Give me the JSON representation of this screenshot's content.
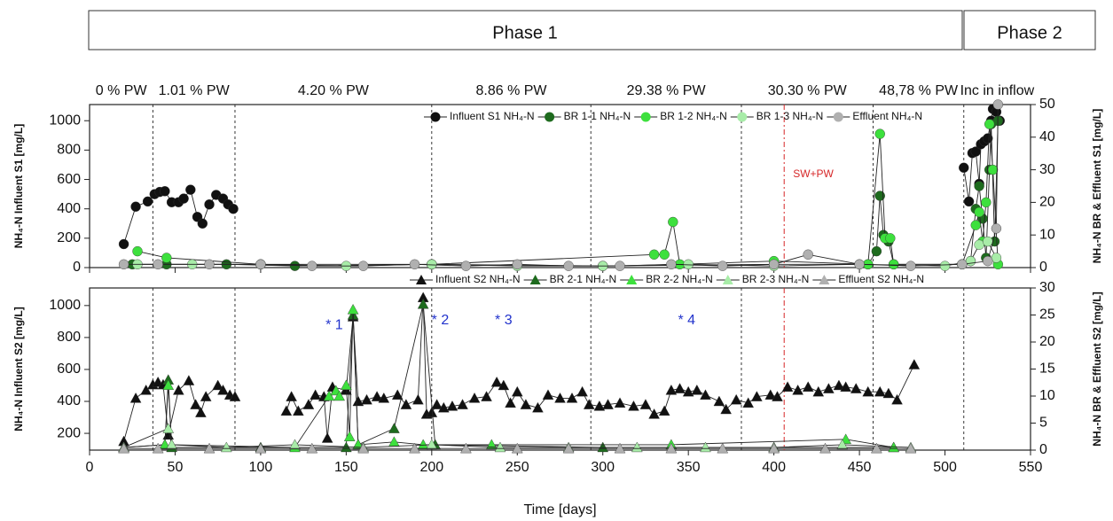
{
  "phases": [
    "Phase 1",
    "Phase 2"
  ],
  "period_labels": [
    "0 % PW",
    "1.01 % PW",
    "4.20 % PW",
    "8.86 % PW",
    "29.38 % PW",
    "30.30 % PW",
    "48,78 % PW",
    "Inc in inflow"
  ],
  "dividers": [
    37,
    85,
    200,
    293,
    381,
    458,
    511
  ],
  "red_divider": {
    "x": 406,
    "label": "SW+PW",
    "color": "#d62728"
  },
  "chart_data": [
    {
      "type": "line",
      "ylabel": "NH₄-N Influent S1 [mg/L]",
      "y2label": "NH₄-N BR & Effluent S1 [mg/L]",
      "xlim": [
        0,
        550
      ],
      "ylim": [
        0,
        1110
      ],
      "yticks": [
        0,
        200,
        400,
        600,
        800,
        1000
      ],
      "y2lim": [
        0,
        50
      ],
      "y2ticks": [
        0,
        10,
        20,
        30,
        40,
        50
      ],
      "series": [
        {
          "name": "Influent S1 NH₄-N",
          "color": "#111111",
          "marker": "circle",
          "axis": "y",
          "x": [
            20,
            27,
            34,
            38,
            41,
            44,
            48,
            52,
            55,
            59,
            63,
            66,
            70,
            74,
            78,
            81,
            84,
            300,
            511,
            514,
            516,
            518,
            520,
            521,
            523,
            525,
            527,
            528,
            530,
            532
          ],
          "values": [
            160,
            415,
            450,
            500,
            515,
            520,
            445,
            445,
            470,
            530,
            345,
            300,
            430,
            495,
            470,
            430,
            400,
            null,
            680,
            450,
            780,
            790,
            570,
            840,
            860,
            880,
            1000,
            1080,
            1060,
            1000
          ]
        },
        {
          "name": "BR 1-1 NH₄-N",
          "color": "#1e6b1e",
          "marker": "circle",
          "axis": "y2",
          "x": [
            25,
            45,
            80,
            120,
            200,
            300,
            400,
            455,
            460,
            462,
            464,
            467,
            470,
            510,
            515,
            518,
            520,
            522,
            524,
            526,
            527,
            529,
            531
          ],
          "values": [
            1,
            1,
            1,
            0.5,
            1,
            0.5,
            1,
            1,
            5,
            22,
            10,
            8,
            1,
            1,
            2,
            18,
            25,
            15,
            3,
            30,
            44,
            8,
            45
          ]
        },
        {
          "name": "BR 1-2 NH₄-N",
          "color": "#3de03d",
          "marker": "circle",
          "axis": "y2",
          "x": [
            28,
            45,
            100,
            200,
            330,
            336,
            341,
            345,
            400,
            455,
            462,
            465,
            468,
            470,
            510,
            518,
            520,
            522,
            524,
            526,
            528,
            531
          ],
          "values": [
            5,
            3,
            1,
            1,
            4,
            4,
            14,
            1,
            2,
            1,
            41,
            9,
            9,
            1,
            1,
            13,
            17,
            8,
            20,
            44,
            30,
            1
          ]
        },
        {
          "name": "BR 1-3 NH₄-N",
          "color": "#a8eca8",
          "marker": "circle",
          "axis": "y2",
          "x": [
            28,
            60,
            100,
            150,
            200,
            250,
            300,
            350,
            400,
            450,
            500,
            515,
            520,
            525,
            530
          ],
          "values": [
            1,
            1,
            1,
            0.5,
            1,
            0.5,
            0.5,
            1,
            0.5,
            1,
            0.5,
            2,
            7,
            8,
            3
          ]
        },
        {
          "name": "Effluent NH₄-N",
          "color": "#b0b0b0",
          "marker": "circle",
          "axis": "y2",
          "x": [
            20,
            40,
            70,
            100,
            130,
            160,
            190,
            220,
            250,
            280,
            310,
            340,
            370,
            400,
            420,
            450,
            480,
            510,
            525,
            530,
            531
          ],
          "values": [
            1,
            1,
            1,
            1,
            0.5,
            0.5,
            1,
            0.5,
            1,
            0.5,
            0.5,
            1,
            0.5,
            1,
            4,
            1,
            0.5,
            1,
            2,
            12,
            50
          ]
        }
      ]
    },
    {
      "type": "line",
      "ylabel": "NH₄-N Influent S2 [mg/L]",
      "y2label": "NH₄-N BR & Effluent S2 [mg/L]",
      "xlabel": "Time [days]",
      "xlim": [
        0,
        550
      ],
      "xticks": [
        0,
        50,
        100,
        150,
        200,
        250,
        300,
        350,
        400,
        450,
        500,
        550
      ],
      "ylim": [
        95,
        1110
      ],
      "yticks": [
        200,
        400,
        600,
        800,
        1000
      ],
      "y2lim": [
        0,
        30
      ],
      "y2ticks": [
        0,
        5,
        10,
        15,
        20,
        25,
        30
      ],
      "annotations": [
        {
          "text": "* 1",
          "x": 143,
          "y": 875
        },
        {
          "text": "* 2",
          "x": 205,
          "y": 905
        },
        {
          "text": "* 3",
          "x": 242,
          "y": 905
        },
        {
          "text": "* 4",
          "x": 349,
          "y": 905
        }
      ],
      "series": [
        {
          "name": "Influent S2 NH₄-N",
          "color": "#111111",
          "marker": "triangle",
          "axis": "y",
          "x": [
            20,
            27,
            33,
            37,
            40,
            43,
            46,
            52,
            58,
            62,
            65,
            68,
            75,
            78,
            82,
            85,
            95,
            115,
            118,
            122,
            128,
            132,
            137,
            139,
            142,
            150,
            154,
            157,
            162,
            168,
            172,
            180,
            185,
            192,
            195,
            197,
            200,
            203,
            207,
            212,
            218,
            225,
            232,
            238,
            242,
            246,
            250,
            255,
            262,
            268,
            275,
            282,
            288,
            292,
            298,
            303,
            310,
            318,
            325,
            330,
            336,
            340,
            345,
            350,
            355,
            360,
            368,
            372,
            378,
            385,
            390,
            398,
            402,
            408,
            414,
            420,
            426,
            432,
            438,
            442,
            448,
            455,
            462,
            467,
            472,
            482
          ],
          "values": [
            150,
            420,
            470,
            505,
            520,
            505,
            190,
            470,
            530,
            380,
            330,
            430,
            500,
            470,
            440,
            430,
            null,
            340,
            430,
            340,
            380,
            440,
            430,
            170,
            490,
            470,
            930,
            400,
            410,
            430,
            420,
            440,
            380,
            410,
            1050,
            320,
            330,
            380,
            360,
            370,
            380,
            420,
            430,
            520,
            500,
            390,
            460,
            380,
            360,
            440,
            420,
            420,
            460,
            380,
            370,
            380,
            390,
            370,
            380,
            320,
            340,
            470,
            480,
            460,
            470,
            440,
            400,
            350,
            410,
            390,
            430,
            440,
            430,
            490,
            470,
            490,
            460,
            480,
            500,
            490,
            480,
            460,
            460,
            450,
            410,
            630
          ]
        },
        {
          "name": "BR 2-1 NH₄-N",
          "color": "#1e6b1e",
          "marker": "triangle",
          "axis": "y2",
          "x": [
            20,
            44,
            46,
            48,
            100,
            150,
            154,
            157,
            178,
            195,
            202,
            300,
            400,
            470
          ],
          "values": [
            0.5,
            1,
            13,
            0.5,
            0.5,
            0.5,
            25,
            1,
            4,
            27,
            1,
            0.5,
            0.5,
            0.5
          ]
        },
        {
          "name": "BR 2-2 NH₄-N",
          "color": "#3de03d",
          "marker": "triangle",
          "axis": "y2",
          "x": [
            20,
            44,
            46,
            48,
            120,
            140,
            144,
            146,
            150,
            152,
            154,
            157,
            178,
            195,
            235,
            340,
            442,
            470
          ],
          "values": [
            0.5,
            1,
            12,
            1,
            0.5,
            10,
            11,
            10,
            12,
            2.5,
            26,
            1,
            1.5,
            1,
            1,
            1,
            2,
            0.5
          ]
        },
        {
          "name": "BR 2-3 NH₄-N",
          "color": "#a8eca8",
          "marker": "triangle",
          "axis": "y2",
          "x": [
            20,
            46,
            48,
            80,
            120,
            160,
            200,
            240,
            280,
            320,
            360,
            400,
            440,
            480
          ],
          "values": [
            0.5,
            4,
            1,
            0.5,
            1,
            0.5,
            1,
            0.5,
            0.5,
            0.5,
            0.5,
            0.5,
            1,
            0.5
          ]
        },
        {
          "name": "Effluent S2 NH₄-N",
          "color": "#b0b0b0",
          "marker": "triangle",
          "axis": "y2",
          "x": [
            20,
            40,
            70,
            100,
            130,
            160,
            190,
            220,
            250,
            280,
            310,
            340,
            370,
            400,
            430,
            460,
            480
          ],
          "values": [
            0.3,
            0.3,
            0.3,
            0.3,
            0.3,
            0.3,
            0.3,
            0.3,
            0.3,
            0.3,
            0.3,
            0.3,
            0.3,
            0.3,
            0.3,
            0.3,
            0.3
          ]
        }
      ]
    }
  ]
}
